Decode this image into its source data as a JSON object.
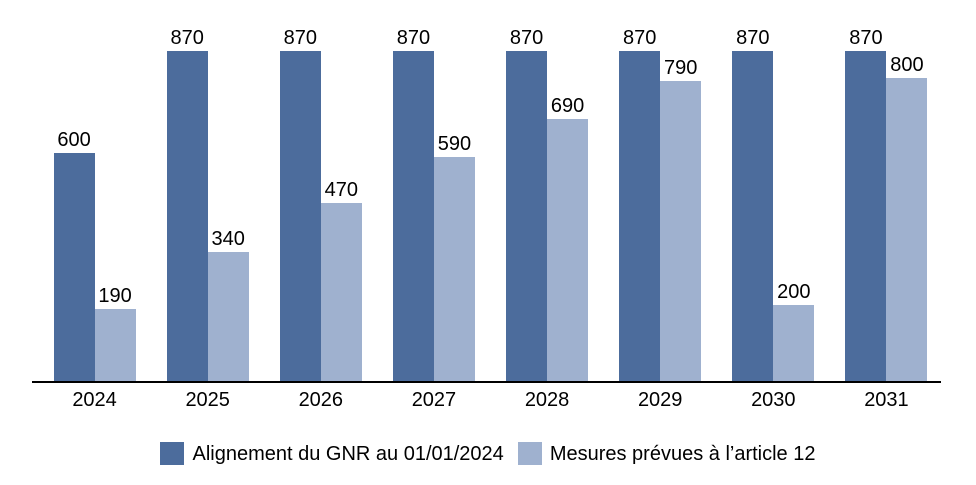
{
  "chart_data": {
    "type": "bar",
    "title": "",
    "xlabel": "",
    "ylabel": "",
    "categories": [
      "2024",
      "2025",
      "2026",
      "2027",
      "2028",
      "2029",
      "2030",
      "2031"
    ],
    "series": [
      {
        "name": "Alignement du GNR au 01/01/2024",
        "color": "#4C6C9C",
        "values": [
          600,
          870,
          870,
          870,
          870,
          870,
          870,
          870
        ]
      },
      {
        "name": "Mesures prévues à l’article 12",
        "color": "#9FB1CF",
        "values": [
          190,
          340,
          470,
          590,
          690,
          790,
          200,
          800
        ]
      }
    ],
    "ylim": [
      0,
      870
    ],
    "data_labels": true,
    "grid": false,
    "legend_position": "bottom",
    "axis_color": "#000000",
    "text_color": "#000000"
  }
}
